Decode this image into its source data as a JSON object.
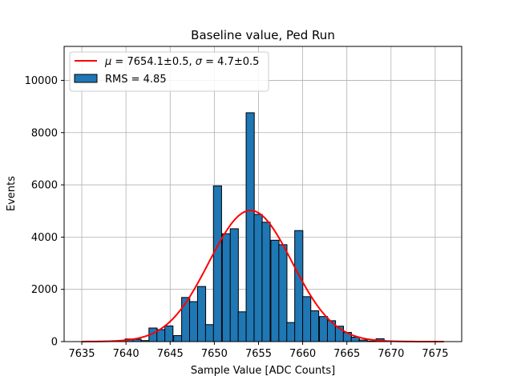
{
  "chart_data": {
    "type": "histogram",
    "title": "Baseline value, Ped Run",
    "xlabel": "Sample Value [ADC Counts]",
    "ylabel": "Events",
    "xlim": [
      7633,
      7678
    ],
    "ylim": [
      0,
      11300
    ],
    "x_ticks": [
      7635,
      7640,
      7645,
      7650,
      7655,
      7660,
      7665,
      7670,
      7675
    ],
    "y_ticks": [
      0,
      2000,
      4000,
      6000,
      8000,
      10000
    ],
    "grid": true,
    "legend_position": "upper-left",
    "bar_color": "#1f77b4",
    "fit_color": "#ff0000",
    "histogram": {
      "name": "RMS = 4.85",
      "bin_width": 0.92,
      "bins": [
        {
          "x": 7639.9,
          "count": 100
        },
        {
          "x": 7640.8,
          "count": 90
        },
        {
          "x": 7641.7,
          "count": 40
        },
        {
          "x": 7642.6,
          "count": 520
        },
        {
          "x": 7643.5,
          "count": 460
        },
        {
          "x": 7644.4,
          "count": 600
        },
        {
          "x": 7645.4,
          "count": 230
        },
        {
          "x": 7646.3,
          "count": 1690
        },
        {
          "x": 7647.2,
          "count": 1530
        },
        {
          "x": 7648.1,
          "count": 2110
        },
        {
          "x": 7649.0,
          "count": 650
        },
        {
          "x": 7649.9,
          "count": 5960
        },
        {
          "x": 7650.9,
          "count": 4130
        },
        {
          "x": 7651.8,
          "count": 4320
        },
        {
          "x": 7652.7,
          "count": 1140
        },
        {
          "x": 7653.6,
          "count": 8760
        },
        {
          "x": 7654.5,
          "count": 4870
        },
        {
          "x": 7655.4,
          "count": 4570
        },
        {
          "x": 7656.4,
          "count": 3880
        },
        {
          "x": 7657.3,
          "count": 3710
        },
        {
          "x": 7658.2,
          "count": 730
        },
        {
          "x": 7659.1,
          "count": 4250
        },
        {
          "x": 7660.0,
          "count": 1720
        },
        {
          "x": 7660.9,
          "count": 1180
        },
        {
          "x": 7661.9,
          "count": 960
        },
        {
          "x": 7662.8,
          "count": 800
        },
        {
          "x": 7663.7,
          "count": 590
        },
        {
          "x": 7664.6,
          "count": 350
        },
        {
          "x": 7665.5,
          "count": 170
        },
        {
          "x": 7666.4,
          "count": 60
        },
        {
          "x": 7667.4,
          "count": 20
        },
        {
          "x": 7668.3,
          "count": 110
        },
        {
          "x": 7669.2,
          "count": 20
        },
        {
          "x": 7670.1,
          "count": 10
        }
      ]
    },
    "fit": {
      "name": "μ = 7654.1±0.5, σ = 4.7±0.5",
      "label_mu": "μ",
      "label_mu_rest": " = 7654.1±0.5, ",
      "label_sigma": "σ",
      "label_sigma_rest": " = 4.7±0.5",
      "mu": 7654.1,
      "sigma": 4.7,
      "amplitude": 5020,
      "x_range": [
        7635,
        7676
      ]
    }
  }
}
